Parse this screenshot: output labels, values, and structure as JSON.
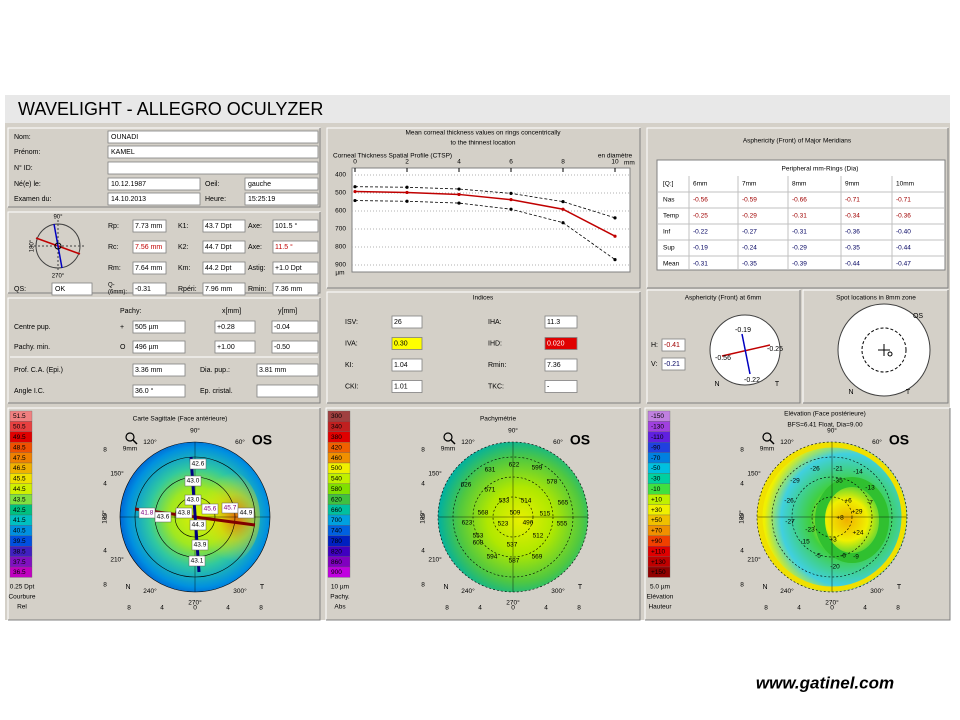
{
  "header": {
    "title": "WAVELIGHT  -  ALLEGRO OCULYZER"
  },
  "patient": {
    "fields": [
      {
        "label": "Nom:",
        "value": "OUNADI"
      },
      {
        "label": "Prénom:",
        "value": "KAMEL"
      },
      {
        "label": "N° ID:"
      },
      {
        "label": "Né(e) le:",
        "value": "10.12.1987"
      },
      {
        "label": "Examen du:",
        "value": "14.10.2013"
      }
    ],
    "eye": {
      "label": "Oeil:",
      "value": "gauche"
    },
    "time": {
      "label": "Heure:",
      "value": "15:25:19"
    }
  },
  "keratometry": {
    "compass": [
      "90°",
      "180°",
      "270°"
    ],
    "rows": [
      [
        {
          "label": "Rp:",
          "value": "7.73 mm"
        },
        {
          "label": "K1:",
          "value": "43.7 Dpt"
        },
        {
          "label": "Axe:",
          "value": "101.5 °"
        }
      ],
      [
        {
          "label": "Rc:",
          "value": "7.56 mm"
        },
        {
          "label": "K2:",
          "value": "44.7 Dpt"
        },
        {
          "label": "Axe:",
          "value": "11.5 °"
        }
      ],
      [
        {
          "label": "Rm:",
          "value": "7.64 mm"
        },
        {
          "label": "Km:",
          "value": "44.2 Dpt"
        },
        {
          "label": "Astig:",
          "value": "+1.0 Dpt"
        }
      ],
      [
        {
          "label_lines": [
            "Q-",
            "(6mm):"
          ],
          "value": "-0.31"
        },
        {
          "label": "Rpéri:",
          "value": "7.96 mm"
        },
        {
          "label": "Rmin:",
          "value": "7.36 mm"
        }
      ]
    ],
    "qs": {
      "label": "QS:",
      "value": "OK"
    }
  },
  "pachy": {
    "headers": [
      "Pachy:",
      "x[mm]",
      "y[mm]"
    ],
    "rows": [
      {
        "label": "Centre pup.",
        "symbol": "+",
        "values": [
          "505 µm",
          "+0.28",
          "-0.04"
        ]
      },
      {
        "label": "Pachy. min.",
        "symbol": "O",
        "values": [
          "496 µm",
          "+1.00",
          "-0.50"
        ]
      }
    ],
    "extra": [
      [
        {
          "label": "Prof. C.A. (Epi.)",
          "value": "3.36 mm"
        },
        {
          "label": "Dia. pup.:",
          "value": "3.81 mm"
        }
      ],
      [
        {
          "label": "Angle I.C.",
          "value": "36.0 °"
        },
        {
          "label": "Ep. cristal."
        }
      ]
    ]
  },
  "chart_data": {
    "type": "line",
    "title_lines": [
      "Mean corneal thickness values on rings concentrically",
      "to the thinnest location"
    ],
    "subtitle": "Corneal Thickness Spatial Profile (CTSP)",
    "x_label": "en diamètre",
    "x_unit": "mm",
    "y_unit": "µm",
    "x": [
      0,
      2,
      4,
      6,
      8,
      10
    ],
    "series": [
      {
        "color": "#000000",
        "dashed": true,
        "values": [
          465,
          468,
          478,
          502,
          548,
          638
        ]
      },
      {
        "color": "#c00000",
        "dashed": false,
        "values": [
          492,
          497,
          508,
          537,
          590,
          740
        ]
      },
      {
        "color": "#000000",
        "dashed": true,
        "values": [
          542,
          546,
          556,
          590,
          665,
          870
        ]
      }
    ],
    "xlim": [
      0,
      10.5
    ],
    "ylim": [
      900,
      400
    ],
    "xticks": [
      0,
      2,
      4,
      6,
      8,
      10
    ],
    "yticks": [
      400,
      500,
      600,
      700,
      800,
      900
    ],
    "grid": true
  },
  "asphericity": {
    "title": "Asphericity (Front) of Major Meridians",
    "subtitle": "Peripheral mm-Rings (Dia)",
    "header": [
      "[Q:]",
      "6mm",
      "7mm",
      "8mm",
      "9mm",
      "10mm"
    ],
    "rows": [
      [
        "Nas",
        "-0.56",
        "-0.59",
        "-0.66",
        "-0.71",
        "-0.71"
      ],
      [
        "Temp",
        "-0.25",
        "-0.29",
        "-0.31",
        "-0.34",
        "-0.36"
      ],
      [
        "Inf",
        "-0.22",
        "-0.27",
        "-0.31",
        "-0.36",
        "-0.40"
      ],
      [
        "Sup",
        "-0.19",
        "-0.24",
        "-0.29",
        "-0.35",
        "-0.44"
      ],
      [
        "Mean",
        "-0.31",
        "-0.35",
        "-0.39",
        "-0.44",
        "-0.47"
      ]
    ]
  },
  "indices": {
    "title": "Indices",
    "items": [
      {
        "label": "ISV:",
        "value": "26"
      },
      {
        "label": "IVA:",
        "value": "0.30",
        "highlight": "#ffff00"
      },
      {
        "label": "KI:",
        "value": "1.04"
      },
      {
        "label": "CKI:",
        "value": "1.01"
      },
      {
        "label": "IHA:",
        "value": "11.3"
      },
      {
        "label": "IHD:",
        "value": "0.020",
        "highlight": "#e00000"
      },
      {
        "label": "Rmin:",
        "value": "7.36"
      },
      {
        "label": "TKC:",
        "value": "-"
      }
    ]
  },
  "asph6": {
    "title": "Asphericity (Front) at 6mm",
    "h": {
      "label": "H:",
      "value": "-0.41"
    },
    "v": {
      "label": "V:",
      "value": "-0.21"
    },
    "points": [
      "-0.19",
      "-0.25",
      "-0.56",
      "-0.22"
    ],
    "n": "N",
    "t": "T"
  },
  "spot": {
    "title": "Spot locations in 8mm zone",
    "eye": "OS",
    "n": "N",
    "t": "T"
  },
  "maps": {
    "eye": "OS",
    "n": "N",
    "t": "T",
    "zoom": "9mm",
    "axis": [
      "8",
      "4",
      "0",
      "4",
      "8"
    ],
    "angles": [
      "90°",
      "120°",
      "150°",
      "180°",
      "210°",
      "240°",
      "270°",
      "300°",
      "60°"
    ],
    "list": [
      {
        "title": "Carte Sagittale (Face antérieure)",
        "scale": {
          "values": [
            "51.5",
            "50.5",
            "49.5",
            "48.5",
            "47.5",
            "46.5",
            "45.5",
            "44.5",
            "43.5",
            "42.5",
            "41.5",
            "40.5",
            "39.5",
            "38.5",
            "37.5",
            "36.5"
          ],
          "colors": [
            "#f08080",
            "#e84040",
            "#e00000",
            "#f05000",
            "#f08000",
            "#f0b000",
            "#f0e000",
            "#d0f000",
            "#80e040",
            "#00c080",
            "#00c0c0",
            "#0090e0",
            "#0050e0",
            "#4020c0",
            "#8010c0",
            "#c000c0"
          ],
          "footer": [
            "0.25 Dpt",
            "Courbure",
            "Rel"
          ]
        },
        "labels": [
          "42.6",
          "43.0",
          "43.0",
          "41.8",
          "43.6",
          "43.8",
          "45.6",
          "45.7",
          "44.9",
          "44.3",
          "43.9",
          "43.1"
        ]
      },
      {
        "title": "Pachymétrie",
        "scale": {
          "values": [
            "300",
            "340",
            "380",
            "420",
            "460",
            "500",
            "540",
            "580",
            "620",
            "660",
            "700",
            "740",
            "780",
            "820",
            "860",
            "900"
          ],
          "colors": [
            "#a04040",
            "#c02020",
            "#e00000",
            "#f06000",
            "#f09000",
            "#f0f000",
            "#c0f000",
            "#80e000",
            "#40c040",
            "#00c0a0",
            "#00a0e0",
            "#0060e0",
            "#0020c0",
            "#4000c0",
            "#8000c0",
            "#c000e0"
          ],
          "footer": [
            "10 µm",
            "Pachy.",
            "Abs"
          ]
        },
        "labels": [
          "622",
          "599",
          "631",
          "578",
          "571",
          "626",
          "533",
          "514",
          "565",
          "568",
          "509",
          "515",
          "623",
          "523",
          "555",
          "553",
          "496",
          "512",
          "608",
          "537",
          "594",
          "569",
          "587"
        ]
      },
      {
        "title": "Elévation (Face postérieure)",
        "subtitle": "BFS=6.41 Float, Dia=9.00",
        "scale": {
          "values": [
            "-150",
            "-130",
            "-110",
            "-90",
            "-70",
            "-50",
            "-30",
            "-10",
            "+10",
            "+30",
            "+50",
            "+70",
            "+90",
            "+110",
            "+130",
            "+150"
          ],
          "colors": [
            "#c080e0",
            "#a040e0",
            "#6020e0",
            "#2040e0",
            "#0080e0",
            "#00c0e0",
            "#00d0a0",
            "#40e040",
            "#c0f000",
            "#f0f000",
            "#f0c000",
            "#f09000",
            "#f04000",
            "#e00000",
            "#c00000",
            "#900000"
          ],
          "footer": [
            "5.0 µm",
            "Elévation",
            "Hauteur"
          ]
        },
        "labels": [
          "-26",
          "-21",
          "-14",
          "-29",
          "-35",
          "-13",
          "-26",
          "+6",
          "-7",
          "-27",
          "+8",
          "+29",
          "-23",
          "+24",
          "-15",
          "+3",
          "-5",
          "-6",
          "-20",
          "-9"
        ]
      }
    ]
  },
  "footer": {
    "url": "www.gatinel.com"
  }
}
